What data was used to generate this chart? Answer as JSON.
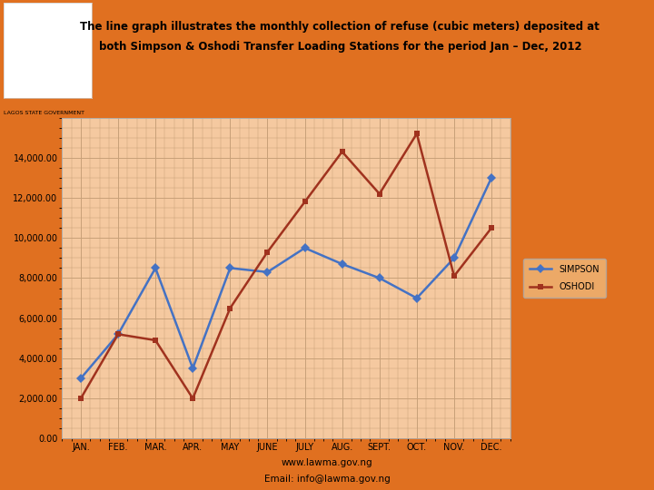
{
  "title_line1": "The line graph illustrates the monthly collection of refuse (cubic meters) deposited at",
  "title_line2": "both Simpson & Oshodi Transfer Loading Stations for the period Jan – Dec, 2012",
  "months": [
    "JAN.",
    "FEB.",
    "MAR.",
    "APR.",
    "MAY",
    "JUNE",
    "JULY",
    "AUG.",
    "SEPT.",
    "OCT.",
    "NOV.",
    "DEC."
  ],
  "simpson": [
    3000,
    5200,
    8500,
    3500,
    8500,
    8300,
    9500,
    8700,
    8000,
    7000,
    9000,
    13000
  ],
  "oshodi": [
    2000,
    5200,
    4900,
    2000,
    6500,
    9300,
    11800,
    14300,
    12200,
    15200,
    8100,
    10500
  ],
  "ylim": [
    0,
    16000
  ],
  "yticks": [
    0,
    2000,
    4000,
    6000,
    8000,
    10000,
    12000,
    14000
  ],
  "simpson_color": "#4472C4",
  "oshodi_color": "#A0321E",
  "bg_outer": "#E07020",
  "bg_plot": "#F5C9A0",
  "grid_color": "#C8A078",
  "footer_line1": "www.lawma.gov.ng",
  "footer_line2": "Email: info@lawma.gov.ng",
  "logo_bg": "#FFFFFF",
  "lawma_text": "LAGOS STATE GOVERNMENT"
}
